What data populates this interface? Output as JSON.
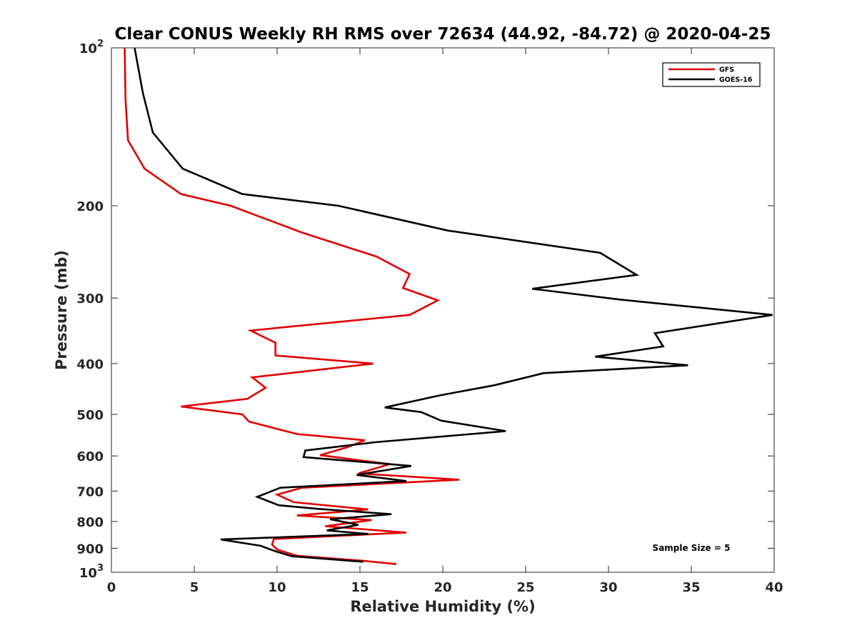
{
  "chart_data": {
    "type": "line",
    "title": "Clear CONUS Weekly RH RMS over 72634 (44.92, -84.72) @ 2020-04-25",
    "xlabel": "Relative Humidity (%)",
    "ylabel": "Pressure (mb)",
    "xlim": [
      0,
      40
    ],
    "ylim": [
      100,
      1000
    ],
    "yscale": "log",
    "y_reversed": true,
    "xticks": [
      0,
      5,
      10,
      15,
      20,
      25,
      30,
      35,
      40
    ],
    "xtick_labels": [
      "0",
      "5",
      "10",
      "15",
      "20",
      "25",
      "30",
      "35",
      "40"
    ],
    "yticks": [
      {
        "value": 100,
        "base": "10",
        "exp": "2",
        "label": ""
      },
      {
        "value": 200,
        "base": "",
        "exp": "",
        "label": "200"
      },
      {
        "value": 300,
        "base": "",
        "exp": "",
        "label": "300"
      },
      {
        "value": 400,
        "base": "",
        "exp": "",
        "label": "400"
      },
      {
        "value": 500,
        "base": "",
        "exp": "",
        "label": "500"
      },
      {
        "value": 600,
        "base": "",
        "exp": "",
        "label": "600"
      },
      {
        "value": 700,
        "base": "",
        "exp": "",
        "label": "700"
      },
      {
        "value": 800,
        "base": "",
        "exp": "",
        "label": "800"
      },
      {
        "value": 900,
        "base": "",
        "exp": "",
        "label": "900"
      },
      {
        "value": 1000,
        "base": "10",
        "exp": "3",
        "label": ""
      }
    ],
    "grid": false,
    "legend": {
      "position": "top-right"
    },
    "annotation": "Sample Size = 5",
    "series": [
      {
        "name": "GFS",
        "color": "#e00000",
        "points": [
          [
            0.8,
            100
          ],
          [
            0.85,
            125
          ],
          [
            1.0,
            150
          ],
          [
            2.0,
            170
          ],
          [
            4.2,
            190
          ],
          [
            7.2,
            200
          ],
          [
            11.5,
            225
          ],
          [
            16.0,
            250
          ],
          [
            18.0,
            270
          ],
          [
            17.6,
            287
          ],
          [
            19.7,
            303
          ],
          [
            18.0,
            323
          ],
          [
            8.4,
            346
          ],
          [
            9.9,
            365
          ],
          [
            9.9,
            386
          ],
          [
            15.8,
            400
          ],
          [
            8.5,
            425
          ],
          [
            9.3,
            445
          ],
          [
            8.2,
            467
          ],
          [
            4.2,
            483
          ],
          [
            7.9,
            500
          ],
          [
            8.3,
            516
          ],
          [
            11.2,
            545
          ],
          [
            15.3,
            560
          ],
          [
            14.2,
            578
          ],
          [
            12.6,
            598
          ],
          [
            16.8,
            622
          ],
          [
            14.9,
            648
          ],
          [
            21.0,
            666
          ],
          [
            11.5,
            690
          ],
          [
            10.0,
            711
          ],
          [
            11.0,
            735
          ],
          [
            15.5,
            759
          ],
          [
            11.2,
            779
          ],
          [
            15.7,
            795
          ],
          [
            12.9,
            817
          ],
          [
            17.8,
            840
          ],
          [
            9.8,
            864
          ],
          [
            9.7,
            885
          ],
          [
            10.0,
            905
          ],
          [
            11.2,
            930
          ],
          [
            15.0,
            950
          ],
          [
            17.2,
            965
          ]
        ]
      },
      {
        "name": "GOES-16",
        "color": "#000000",
        "points": [
          [
            1.4,
            100
          ],
          [
            1.9,
            122
          ],
          [
            2.5,
            145
          ],
          [
            4.3,
            170
          ],
          [
            7.9,
            190
          ],
          [
            13.7,
            200
          ],
          [
            20.3,
            223
          ],
          [
            29.5,
            246
          ],
          [
            31.7,
            271
          ],
          [
            25.4,
            288
          ],
          [
            30.7,
            302
          ],
          [
            39.9,
            323
          ],
          [
            32.8,
            350
          ],
          [
            33.3,
            371
          ],
          [
            29.2,
            388
          ],
          [
            34.8,
            403
          ],
          [
            26.1,
            417
          ],
          [
            23.1,
            440
          ],
          [
            19.8,
            460
          ],
          [
            16.5,
            485
          ],
          [
            18.7,
            495
          ],
          [
            19.9,
            514
          ],
          [
            23.8,
            538
          ],
          [
            15.9,
            565
          ],
          [
            11.7,
            586
          ],
          [
            11.6,
            603
          ],
          [
            18.1,
            627
          ],
          [
            14.8,
            652
          ],
          [
            17.8,
            670
          ],
          [
            10.2,
            690
          ],
          [
            8.8,
            718
          ],
          [
            10.1,
            745
          ],
          [
            12.5,
            757
          ],
          [
            16.9,
            775
          ],
          [
            13.2,
            792
          ],
          [
            14.9,
            812
          ],
          [
            13.0,
            832
          ],
          [
            15.5,
            845
          ],
          [
            6.6,
            866
          ],
          [
            9.0,
            890
          ],
          [
            9.9,
            912
          ],
          [
            10.9,
            932
          ],
          [
            15.2,
            955
          ]
        ]
      }
    ]
  }
}
